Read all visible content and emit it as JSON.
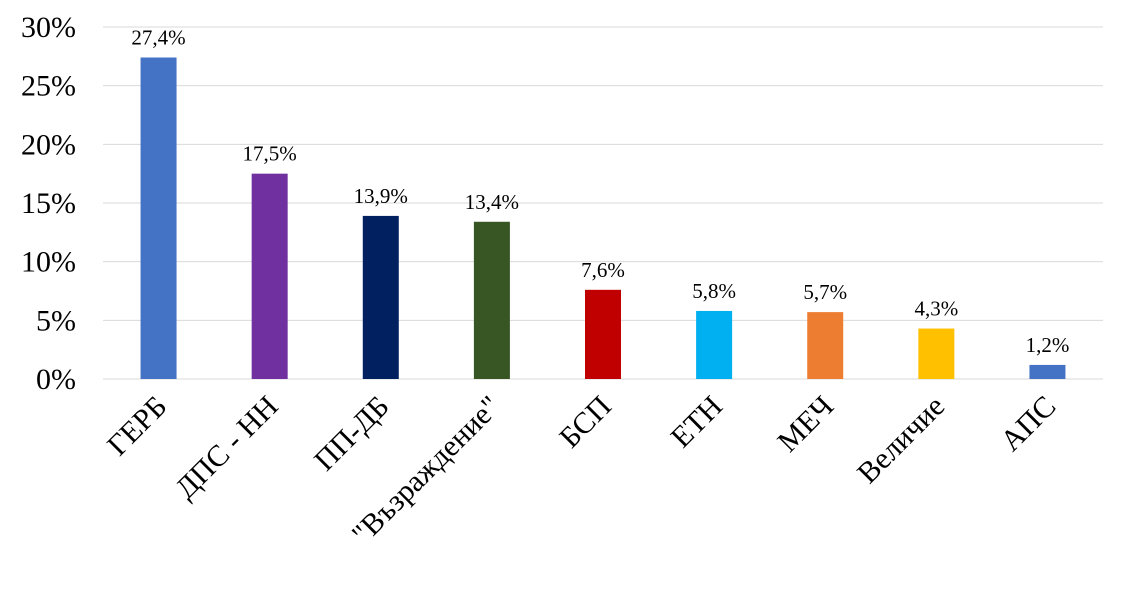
{
  "chart_data": {
    "type": "bar",
    "title": "",
    "xlabel": "",
    "ylabel": "",
    "ylim": [
      0,
      30
    ],
    "y_ticks": [
      {
        "value": 0,
        "label": "0%"
      },
      {
        "value": 5,
        "label": "5%"
      },
      {
        "value": 10,
        "label": "10%"
      },
      {
        "value": 15,
        "label": "15%"
      },
      {
        "value": 20,
        "label": "20%"
      },
      {
        "value": 25,
        "label": "25%"
      },
      {
        "value": 30,
        "label": "30%"
      }
    ],
    "grid": true,
    "legend": "none",
    "categories": [
      "ГЕРБ",
      "ДПС - НН",
      "ПП-ДБ",
      "\"Възраждение\"",
      "БСП",
      "ЕТН",
      "МЕЧ",
      "Величие",
      "АПС"
    ],
    "values": [
      27.4,
      17.5,
      13.9,
      13.4,
      7.6,
      5.8,
      5.7,
      4.3,
      1.2
    ],
    "data_labels": [
      "27,4%",
      "17,5%",
      "13,9%",
      "13,4%",
      "7,6%",
      "5,8%",
      "5,7%",
      "4,3%",
      "1,2%"
    ],
    "colors": [
      "#4472c4",
      "#7030a0",
      "#002060",
      "#375623",
      "#c00000",
      "#00b0f0",
      "#ed7d31",
      "#ffc000",
      "#4472c4"
    ]
  }
}
